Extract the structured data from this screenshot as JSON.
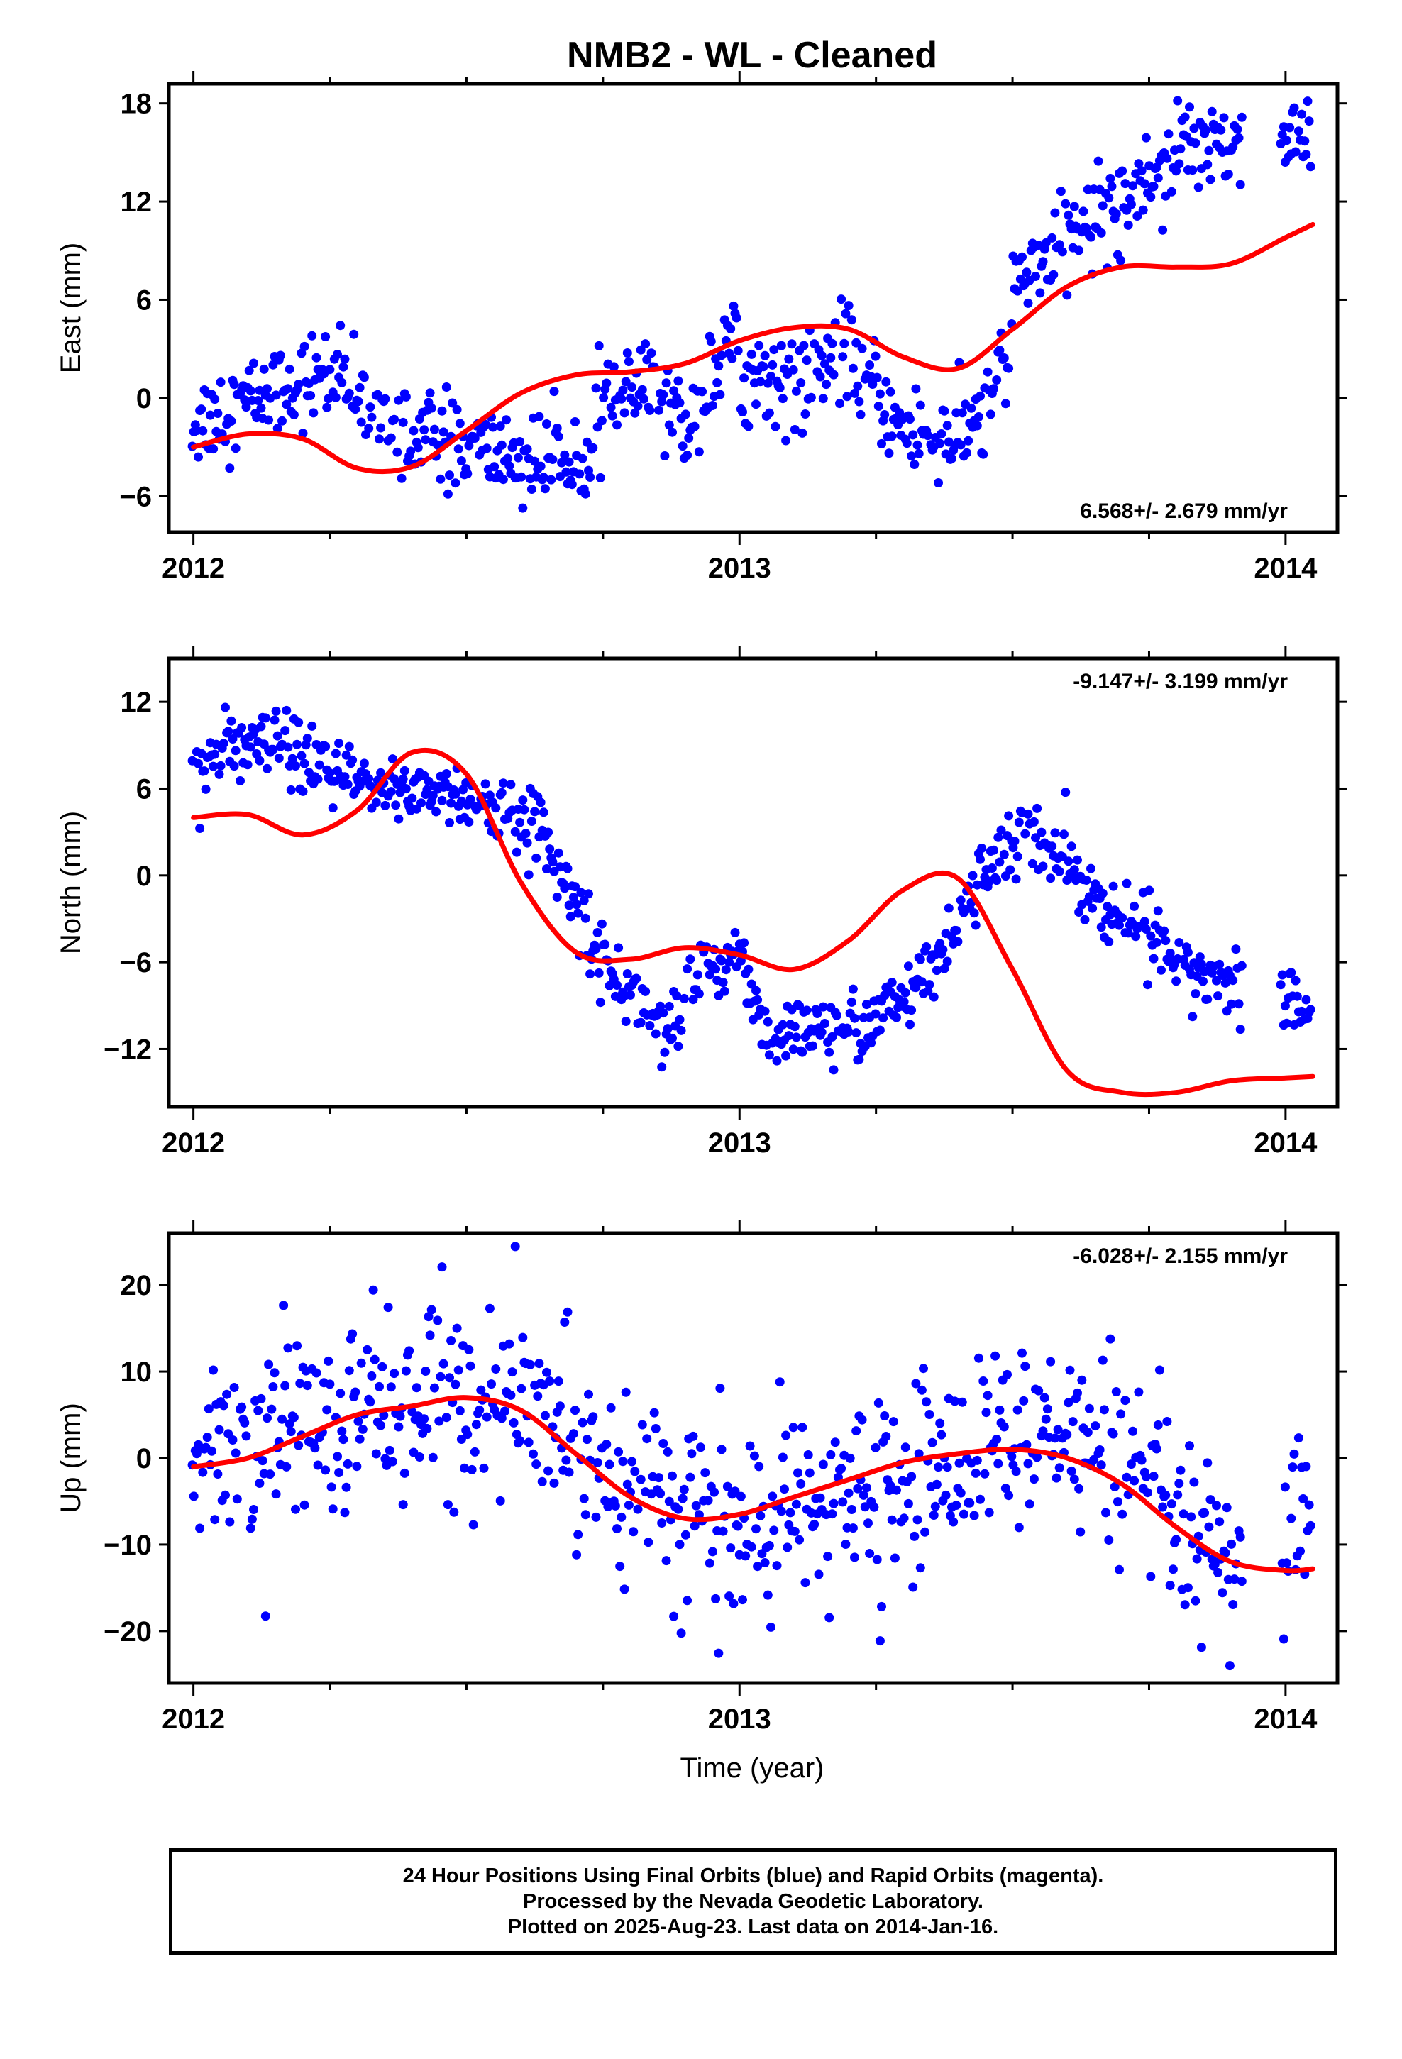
{
  "title": "NMB2  - WL - Cleaned",
  "caption": {
    "line1": "24 Hour Positions Using Final Orbits (blue) and Rapid Orbits (magenta).",
    "line2": "Processed by the Nevada Geodetic Laboratory.",
    "line3": "Plotted on 2025-Aug-23. Last data on 2014-Jan-16."
  },
  "colors": {
    "points": "#0000ff",
    "model": "#ff0000",
    "frame": "#000000"
  },
  "chart_data": [
    {
      "type": "scatter",
      "ylabel": "East (mm)",
      "xlabel": "",
      "x_ticks": [
        "2012",
        "2013",
        "2014"
      ],
      "y_ticks": [
        -6,
        0,
        6,
        12,
        18
      ],
      "xlim": [
        2011.955,
        2014.095
      ],
      "ylim": [
        -8.2,
        19.2
      ],
      "rate_label": "6.568+/- 2.679 mm/yr",
      "rate_position": "bottom-right",
      "model_curve": {
        "x": [
          2012.0,
          2012.1,
          2012.2,
          2012.3,
          2012.4,
          2012.5,
          2012.6,
          2012.7,
          2012.8,
          2012.9,
          2013.0,
          2013.1,
          2013.2,
          2013.3,
          2013.4,
          2013.5,
          2013.6,
          2013.7,
          2013.8,
          2013.9,
          2014.0,
          2014.05
        ],
        "y": [
          -3.0,
          -2.2,
          -2.5,
          -4.3,
          -4.2,
          -2.0,
          0.3,
          1.4,
          1.6,
          2.1,
          3.5,
          4.3,
          4.2,
          2.5,
          1.8,
          4.2,
          6.8,
          8.0,
          8.0,
          8.2,
          9.8,
          10.6
        ]
      },
      "trend_segments": [
        {
          "x": [
            2012.0,
            2012.15,
            2012.25,
            2012.35
          ],
          "y": [
            -1.5,
            0.5,
            1.5,
            -1.5
          ]
        },
        {
          "x": [
            2012.35,
            2012.5,
            2012.65,
            2012.75
          ],
          "y": [
            -1.5,
            -3.0,
            -4.0,
            -2.0
          ]
        },
        {
          "x": [
            2012.75,
            2012.85,
            2012.9,
            2013.0
          ],
          "y": [
            0.0,
            0.5,
            -2.0,
            4.5
          ]
        },
        {
          "x": [
            2013.0,
            2013.1,
            2013.2,
            2013.3
          ],
          "y": [
            1.5,
            1.0,
            2.5,
            -2.0
          ]
        },
        {
          "x": [
            2013.3,
            2013.4,
            2013.45,
            2013.5
          ],
          "y": [
            -2.0,
            -2.5,
            -1.0,
            4.0
          ]
        },
        {
          "x": [
            2013.5,
            2013.6,
            2013.7,
            2013.8
          ],
          "y": [
            7.0,
            10.0,
            12.0,
            15.0
          ]
        },
        {
          "x": [
            2013.8,
            2013.9,
            2014.0,
            2014.05
          ],
          "y": [
            16.0,
            16.0,
            15.5,
            16.0
          ]
        }
      ],
      "scatter_sd": 1.4,
      "gaps": [
        [
          2013.92,
          2013.99
        ]
      ]
    },
    {
      "type": "scatter",
      "ylabel": "North (mm)",
      "xlabel": "",
      "x_ticks": [
        "2012",
        "2013",
        "2014"
      ],
      "y_ticks": [
        -12,
        -6,
        0,
        6,
        12
      ],
      "xlim": [
        2011.955,
        2014.095
      ],
      "ylim": [
        -16.0,
        15.0
      ],
      "rate_label": "-9.147+/- 3.199 mm/yr",
      "rate_position": "top-right",
      "model_curve": {
        "x": [
          2012.0,
          2012.1,
          2012.2,
          2012.3,
          2012.4,
          2012.5,
          2012.6,
          2012.7,
          2012.8,
          2012.9,
          2013.0,
          2013.1,
          2013.2,
          2013.3,
          2013.4,
          2013.5,
          2013.6,
          2013.7,
          2013.8,
          2013.9,
          2014.0,
          2014.05
        ],
        "y": [
          4.0,
          4.2,
          2.8,
          4.5,
          8.5,
          7.0,
          -0.5,
          -5.3,
          -5.8,
          -5.0,
          -5.5,
          -6.5,
          -4.5,
          -1.0,
          -0.2,
          -6.5,
          -13.5,
          -15.0,
          -15.0,
          -14.2,
          -14.0,
          -13.9
        ]
      },
      "trend_segments": [
        {
          "x": [
            2012.0,
            2012.15,
            2012.25,
            2012.35
          ],
          "y": [
            8.0,
            9.0,
            7.0,
            6.0
          ]
        },
        {
          "x": [
            2012.35,
            2012.45,
            2012.55,
            2012.65
          ],
          "y": [
            6.0,
            6.0,
            4.5,
            3.0
          ]
        },
        {
          "x": [
            2012.65,
            2012.75,
            2012.82,
            2012.9
          ],
          "y": [
            2.0,
            -6.0,
            -9.0,
            -11.0
          ]
        },
        {
          "x": [
            2012.9,
            2013.0,
            2013.05,
            2013.15
          ],
          "y": [
            -8.0,
            -5.0,
            -11.0,
            -11.0
          ]
        },
        {
          "x": [
            2013.15,
            2013.25,
            2013.35,
            2013.4
          ],
          "y": [
            -11.0,
            -10.0,
            -7.0,
            -4.0
          ]
        },
        {
          "x": [
            2013.4,
            2013.5,
            2013.6,
            2013.65
          ],
          "y": [
            -2.0,
            2.5,
            1.5,
            -2.0
          ]
        },
        {
          "x": [
            2013.65,
            2013.75,
            2013.85,
            2013.9
          ],
          "y": [
            -2.0,
            -4.0,
            -6.5,
            -7.5
          ]
        },
        {
          "x": [
            2014.0,
            2014.02,
            2014.04,
            2014.05
          ],
          "y": [
            -8.5,
            -9.0,
            -9.5,
            -9.0
          ]
        }
      ],
      "scatter_sd": 1.2,
      "gaps": [
        [
          2013.92,
          2013.99
        ]
      ]
    },
    {
      "type": "scatter",
      "ylabel": "Up (mm)",
      "xlabel": "Time (year)",
      "x_ticks": [
        "2012",
        "2013",
        "2014"
      ],
      "y_ticks": [
        -20,
        -10,
        0,
        10,
        20
      ],
      "xlim": [
        2011.955,
        2014.095
      ],
      "ylim": [
        -26.0,
        26.0
      ],
      "rate_label": "-6.028+/- 2.155 mm/yr",
      "rate_position": "top-right",
      "model_curve": {
        "x": [
          2012.0,
          2012.1,
          2012.2,
          2012.3,
          2012.4,
          2012.5,
          2012.6,
          2012.7,
          2012.8,
          2012.9,
          2013.0,
          2013.1,
          2013.2,
          2013.3,
          2013.4,
          2013.5,
          2013.6,
          2013.7,
          2013.8,
          2013.9,
          2014.0,
          2014.05
        ],
        "y": [
          -1.0,
          0.0,
          2.5,
          5.0,
          6.0,
          7.0,
          5.5,
          0.5,
          -4.5,
          -7.0,
          -6.5,
          -4.5,
          -2.5,
          -0.5,
          0.5,
          1.0,
          0.0,
          -3.0,
          -8.0,
          -12.0,
          -13.0,
          -12.8
        ]
      },
      "trend_segments": [
        {
          "x": [
            2012.0,
            2012.15,
            2012.3,
            2012.45
          ],
          "y": [
            -2.0,
            3.0,
            6.0,
            7.0
          ]
        },
        {
          "x": [
            2012.45,
            2012.6,
            2012.75,
            2012.9
          ],
          "y": [
            7.0,
            6.0,
            0.0,
            -6.0
          ]
        },
        {
          "x": [
            2012.9,
            2013.0,
            2013.15,
            2013.3
          ],
          "y": [
            -6.0,
            -9.0,
            -6.0,
            -3.0
          ]
        },
        {
          "x": [
            2013.3,
            2013.45,
            2013.6,
            2013.75
          ],
          "y": [
            -3.0,
            2.0,
            2.0,
            -4.0
          ]
        },
        {
          "x": [
            2013.75,
            2013.85,
            2013.95,
            2014.05
          ],
          "y": [
            -4.0,
            -12.0,
            -14.0,
            -6.0
          ]
        }
      ],
      "scatter_sd": 5.5,
      "gaps": [
        [
          2013.92,
          2013.99
        ]
      ]
    }
  ]
}
